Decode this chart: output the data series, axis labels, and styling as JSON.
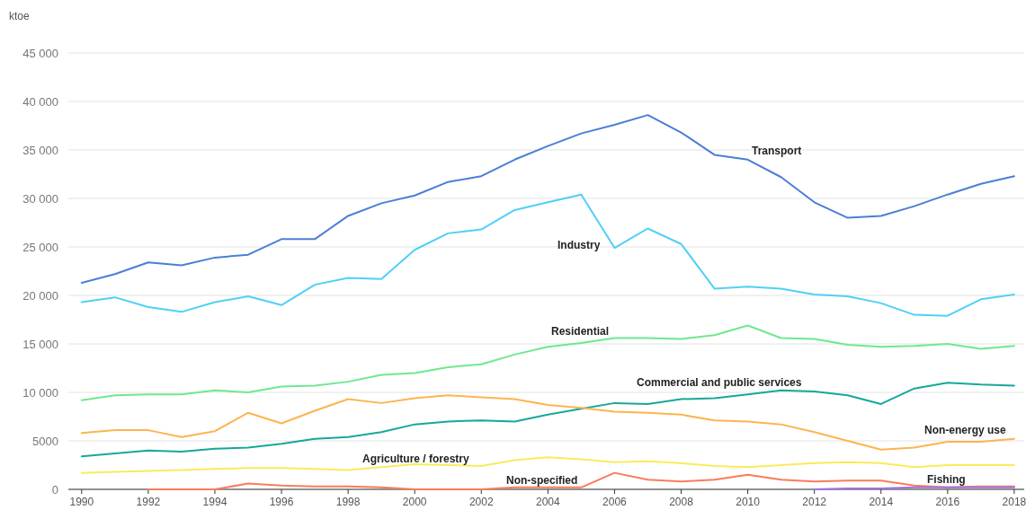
{
  "chart_data": {
    "type": "line",
    "ylabel": "ktoe",
    "x": [
      1990,
      1991,
      1992,
      1993,
      1994,
      1995,
      1996,
      1997,
      1998,
      1999,
      2000,
      2001,
      2002,
      2003,
      2004,
      2005,
      2006,
      2007,
      2008,
      2009,
      2010,
      2011,
      2012,
      2013,
      2014,
      2015,
      2016,
      2017,
      2018
    ],
    "xlim": [
      1989.6,
      2018.3
    ],
    "xticks": [
      1990,
      1992,
      1994,
      1996,
      1998,
      2000,
      2002,
      2004,
      2006,
      2008,
      2010,
      2012,
      2014,
      2016,
      2018
    ],
    "ylim": [
      0,
      45000
    ],
    "yticks": [
      {
        "value": 0,
        "label": "0"
      },
      {
        "value": 5000,
        "label": "5000"
      },
      {
        "value": 10000,
        "label": "10 000"
      },
      {
        "value": 15000,
        "label": "15 000"
      },
      {
        "value": 20000,
        "label": "20 000"
      },
      {
        "value": 25000,
        "label": "25 000"
      },
      {
        "value": 30000,
        "label": "30 000"
      },
      {
        "value": 35000,
        "label": "35 000"
      },
      {
        "value": 40000,
        "label": "40 000"
      },
      {
        "value": 45000,
        "label": "45 000"
      }
    ],
    "grid": "y",
    "legend": false,
    "marker": "none",
    "line_style": "solid",
    "series": [
      {
        "name": "Transport",
        "color": "#4a7fd6",
        "values": [
          21300,
          22200,
          23400,
          23100,
          23900,
          24200,
          25800,
          25800,
          28200,
          29500,
          30300,
          31700,
          32300,
          34000,
          35400,
          36700,
          37600,
          38600,
          36800,
          34500,
          34000,
          32200,
          29600,
          28000,
          28200,
          29200,
          30400,
          31500,
          32300
        ]
      },
      {
        "name": "Industry",
        "color": "#4fd0f7",
        "values": [
          19300,
          19800,
          18800,
          18300,
          19300,
          19900,
          19000,
          21100,
          21800,
          21700,
          24700,
          26400,
          26800,
          28800,
          29600,
          30400,
          24900,
          26900,
          25300,
          20700,
          20900,
          20700,
          20100,
          19900,
          19200,
          18000,
          17900,
          19600,
          20100
        ]
      },
      {
        "name": "Residential",
        "color": "#6ee88f",
        "values": [
          9200,
          9700,
          9800,
          9800,
          10200,
          10000,
          10600,
          10700,
          11100,
          11800,
          12000,
          12600,
          12900,
          13900,
          14700,
          15100,
          15600,
          15600,
          15500,
          15900,
          16900,
          15600,
          15500,
          14900,
          14700,
          14800,
          15000,
          14500,
          14800
        ]
      },
      {
        "name": "Commercial and public services",
        "color": "#16a89a",
        "values": [
          3400,
          3700,
          4000,
          3900,
          4200,
          4300,
          4700,
          5200,
          5400,
          5900,
          6700,
          7000,
          7100,
          7000,
          7700,
          8300,
          8900,
          8800,
          9300,
          9400,
          9800,
          10200,
          10100,
          9700,
          8800,
          10400,
          11000,
          10800,
          10700
        ]
      },
      {
        "name": "Non-energy use",
        "color": "#fdb44f",
        "values": [
          5800,
          6100,
          6100,
          5400,
          6000,
          7900,
          6800,
          8100,
          9300,
          8900,
          9400,
          9700,
          9500,
          9300,
          8700,
          8400,
          8000,
          7900,
          7700,
          7100,
          7000,
          6700,
          5900,
          5000,
          4100,
          4300,
          4900,
          4900,
          5200
        ]
      },
      {
        "name": "Agriculture / forestry",
        "color": "#f8ec5a",
        "values": [
          1700,
          1800,
          1900,
          2000,
          2100,
          2200,
          2200,
          2100,
          2000,
          2300,
          2600,
          2500,
          2400,
          3000,
          3300,
          3100,
          2800,
          2900,
          2700,
          2400,
          2300,
          2500,
          2700,
          2800,
          2700,
          2300,
          2500,
          2500,
          2500
        ]
      },
      {
        "name": "Non-specified",
        "color": "#f97c5a",
        "values": [
          null,
          null,
          0,
          0,
          0,
          600,
          400,
          300,
          300,
          200,
          0,
          0,
          0,
          200,
          200,
          200,
          1700,
          1000,
          800,
          1000,
          1500,
          1000,
          800,
          900,
          900,
          400,
          200,
          300,
          300
        ]
      },
      {
        "name": "Fishing",
        "color": "#a070e0",
        "values": [
          null,
          null,
          null,
          null,
          null,
          null,
          null,
          null,
          null,
          null,
          null,
          null,
          null,
          null,
          null,
          null,
          null,
          null,
          null,
          null,
          null,
          null,
          0,
          100,
          100,
          200,
          200,
          200,
          200
        ]
      }
    ]
  }
}
